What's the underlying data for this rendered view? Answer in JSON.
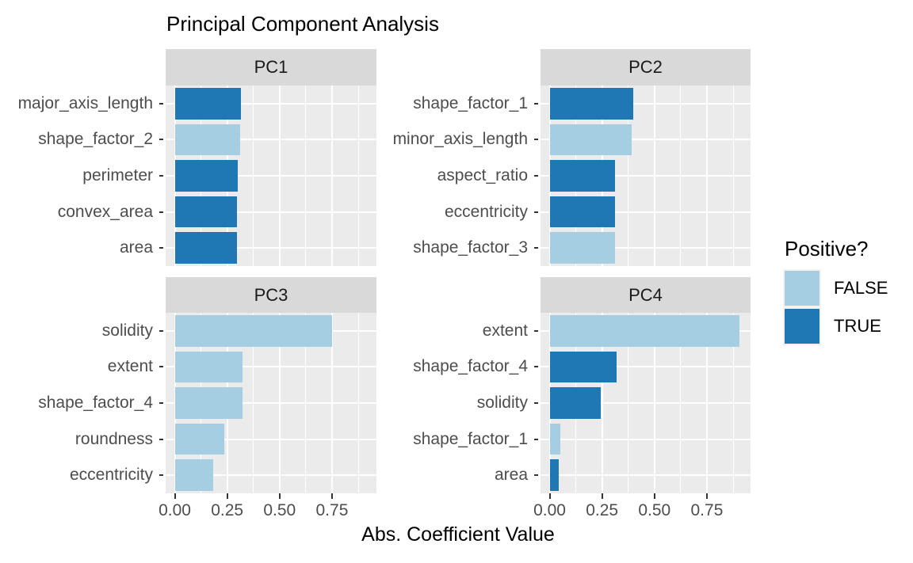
{
  "title": "Principal Component Analysis",
  "x_axis": {
    "title": "Abs. Coefficient Value",
    "tick_labels": [
      "0.00",
      "0.25",
      "0.50",
      "0.75"
    ],
    "tick_values": [
      0,
      0.25,
      0.5,
      0.75
    ]
  },
  "legend": {
    "title": "Positive?",
    "items": [
      {
        "label": "FALSE",
        "value": false,
        "color": "#A6CEE3"
      },
      {
        "label": "TRUE",
        "value": true,
        "color": "#1F78B4"
      }
    ]
  },
  "colors": {
    "positive_true": "#1F78B4",
    "positive_false": "#A6CEE3",
    "panel_background": "#EBEBEB",
    "strip_background": "#D9D9D9",
    "gridline": "#FFFFFF",
    "axis_text": "#4D4D4D",
    "strip_text": "#1A1A1A",
    "tick_mark": "#333333",
    "legend_key_background": "#F2F2F2",
    "title_text": "#000000"
  },
  "chart_data": {
    "type": "bar",
    "orientation": "horizontal",
    "title": "Principal Component Analysis",
    "xlabel": "Abs. Coefficient Value",
    "xlim": [
      -0.046,
      0.955
    ],
    "x_ticks": [
      0,
      0.25,
      0.5,
      0.75
    ],
    "grid": "white-on-gray, minor ticks every 0.125",
    "legend_title": "Positive?",
    "legend_position": "right",
    "facets": [
      {
        "name": "PC1",
        "bars": [
          {
            "label": "major_axis_length",
            "value": 0.315,
            "positive": true
          },
          {
            "label": "shape_factor_2",
            "value": 0.31,
            "positive": false
          },
          {
            "label": "perimeter",
            "value": 0.3,
            "positive": true
          },
          {
            "label": "convex_area",
            "value": 0.295,
            "positive": true
          },
          {
            "label": "area",
            "value": 0.295,
            "positive": true
          }
        ]
      },
      {
        "name": "PC2",
        "bars": [
          {
            "label": "shape_factor_1",
            "value": 0.4,
            "positive": true
          },
          {
            "label": "minor_axis_length",
            "value": 0.39,
            "positive": false
          },
          {
            "label": "aspect_ratio",
            "value": 0.31,
            "positive": true
          },
          {
            "label": "eccentricity",
            "value": 0.31,
            "positive": true
          },
          {
            "label": "shape_factor_3",
            "value": 0.31,
            "positive": false
          }
        ]
      },
      {
        "name": "PC3",
        "bars": [
          {
            "label": "solidity",
            "value": 0.75,
            "positive": false
          },
          {
            "label": "extent",
            "value": 0.325,
            "positive": false
          },
          {
            "label": "shape_factor_4",
            "value": 0.325,
            "positive": false
          },
          {
            "label": "roundness",
            "value": 0.235,
            "positive": false
          },
          {
            "label": "eccentricity",
            "value": 0.185,
            "positive": false
          }
        ]
      },
      {
        "name": "PC4",
        "bars": [
          {
            "label": "extent",
            "value": 0.905,
            "positive": false
          },
          {
            "label": "shape_factor_4",
            "value": 0.32,
            "positive": true
          },
          {
            "label": "solidity",
            "value": 0.245,
            "positive": true
          },
          {
            "label": "shape_factor_1",
            "value": 0.05,
            "positive": false
          },
          {
            "label": "area",
            "value": 0.045,
            "positive": true
          }
        ]
      }
    ]
  }
}
